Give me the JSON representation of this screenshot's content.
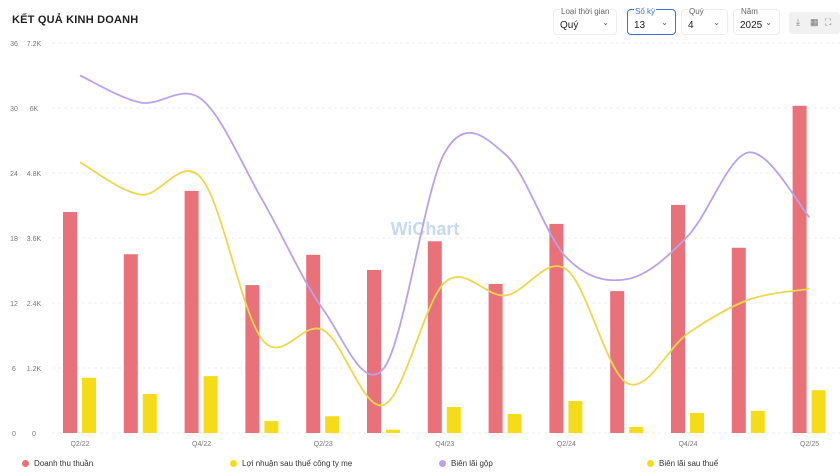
{
  "header": {
    "title": "KẾT QUẢ KINH DOANH"
  },
  "filters": [
    {
      "label": "Loại thời gian",
      "value": "Quý"
    },
    {
      "label": "Số kỳ",
      "value": "13"
    },
    {
      "label": "Quý",
      "value": "4"
    },
    {
      "label": "Năm",
      "value": "2025"
    }
  ],
  "tools": {
    "download": "⤓",
    "excel": "▦",
    "fullscreen": "⛶"
  },
  "watermark": "WiChart",
  "colors": {
    "revenue": "#e8717a",
    "profit": "#f5dc1a",
    "gross": "#b9a1ec",
    "net": "#ecd84a"
  },
  "chart_data": {
    "type": "bar+line",
    "title": "KẾT QUẢ KINH DOANH",
    "categories": [
      "Q2/22",
      "Q3/22",
      "Q4/22",
      "Q1/23",
      "Q2/23",
      "Q3/23",
      "Q4/23",
      "Q1/24",
      "Q2/24",
      "Q3/24",
      "Q4/24",
      "Q1/25",
      "Q2/25"
    ],
    "x_tick_labels": [
      "Q2/22",
      "Q4/22",
      "Q2/23",
      "Q4/23",
      "Q2/24",
      "Q4/24",
      "Q2/25"
    ],
    "left_axis": {
      "ylim": [
        0,
        36
      ],
      "ticks": [
        "0",
        "6",
        "12",
        "18",
        "24",
        "30",
        "36"
      ]
    },
    "right_axis": {
      "ylim": [
        0,
        7200
      ],
      "ticks": [
        "0",
        "1.2K",
        "2.4K",
        "3.6K",
        "4.8K",
        "6K",
        "7.2K"
      ]
    },
    "series": [
      {
        "name": "Doanh thu thuần",
        "type": "bar",
        "axis": "right",
        "values": [
          4080,
          3300,
          4470,
          2730,
          3290,
          3010,
          3540,
          2750,
          3860,
          2620,
          4210,
          3420,
          6040
        ]
      },
      {
        "name": "Lợi nhuận sau thuế công ty mẹ",
        "type": "bar",
        "axis": "right",
        "values": [
          1020,
          720,
          1050,
          220,
          310,
          60,
          480,
          350,
          590,
          110,
          370,
          410,
          790
        ]
      },
      {
        "name": "Biên lãi gộp",
        "type": "line",
        "axis": "left",
        "values": [
          33.0,
          30.5,
          30.8,
          21.5,
          11.4,
          6.0,
          25.9,
          25.7,
          16.2,
          14.2,
          18.2,
          25.9,
          19.9
        ]
      },
      {
        "name": "Biên lãi sau thuế",
        "type": "line",
        "axis": "left",
        "values": [
          25.0,
          22.0,
          23.5,
          8.6,
          9.5,
          2.6,
          13.9,
          12.7,
          15.1,
          4.6,
          9.2,
          12.3,
          13.3
        ]
      }
    ],
    "grid": true,
    "legend": "bottom"
  }
}
